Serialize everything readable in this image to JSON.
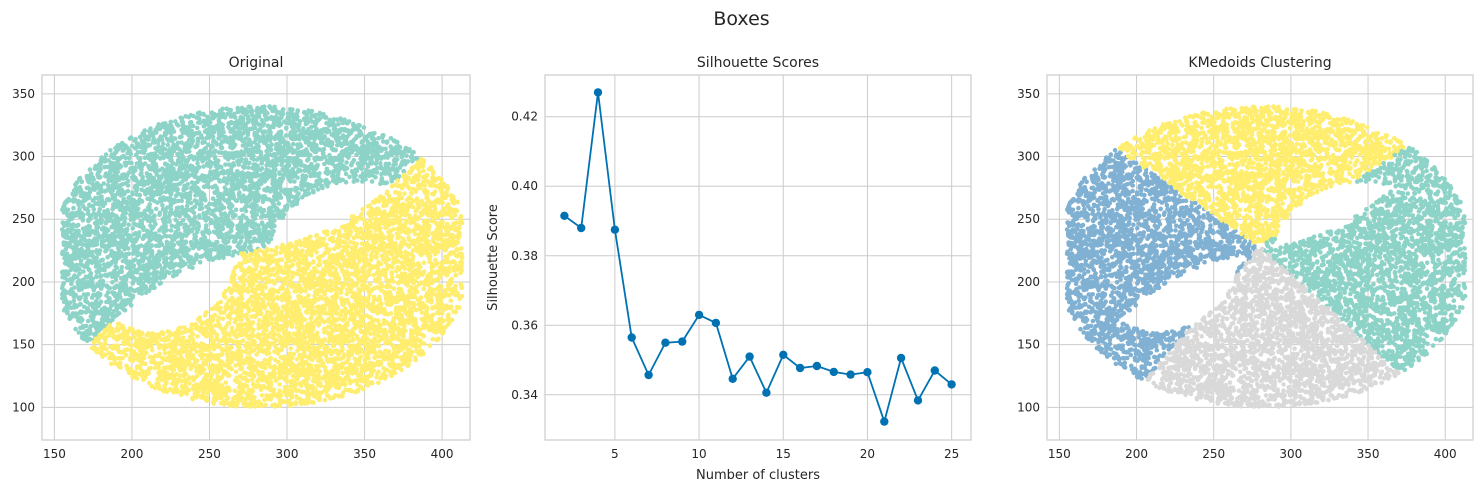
{
  "suptitle": "Boxes",
  "colors": {
    "teal": "#8dd3c7",
    "yellow": "#ffed6f",
    "blue": "#80b1d3",
    "gray": "#d9d9d9",
    "line": "#0072b2",
    "grid": "#cccccc",
    "spine": "#cccccc"
  },
  "chart_data": [
    {
      "type": "scatter",
      "title": "Original",
      "xlabel": "",
      "ylabel": "",
      "xlim": [
        142,
        418
      ],
      "ylim": [
        74,
        365
      ],
      "xticks": [
        150,
        200,
        250,
        300,
        350,
        400
      ],
      "yticks": [
        100,
        150,
        200,
        250,
        300,
        350
      ],
      "grid": true,
      "series": [
        {
          "color": "teal",
          "point_count": 4500,
          "region": "upper-left band of the ring: x 160-410, y 160-350"
        },
        {
          "color": "yellow",
          "point_count": 4500,
          "region": "lower-right band of the ring: x 155-405, y 90-270"
        }
      ]
    },
    {
      "type": "line",
      "title": "Silhouette Scores",
      "xlabel": "Number of clusters",
      "ylabel": "Silhouette Score",
      "xlim": [
        0.85,
        26.15
      ],
      "ylim": [
        0.327,
        0.432
      ],
      "xticks": [
        5,
        10,
        15,
        20,
        25
      ],
      "yticks": [
        0.34,
        0.36,
        0.38,
        0.4,
        0.42
      ],
      "ytick_labels": [
        "0.34",
        "0.36",
        "0.38",
        "0.40",
        "0.42"
      ],
      "grid": true,
      "x": [
        2,
        3,
        4,
        5,
        6,
        7,
        8,
        9,
        10,
        11,
        12,
        13,
        14,
        15,
        16,
        17,
        18,
        19,
        20,
        21,
        22,
        23,
        24,
        25
      ],
      "values": [
        0.3915,
        0.388,
        0.427,
        0.3875,
        0.3565,
        0.3457,
        0.355,
        0.3553,
        0.363,
        0.3607,
        0.3446,
        0.351,
        0.3406,
        0.3515,
        0.3477,
        0.3483,
        0.3466,
        0.3458,
        0.3465,
        0.3323,
        0.3506,
        0.3384,
        0.347,
        0.343
      ]
    },
    {
      "type": "scatter",
      "title": "KMedoids Clustering",
      "xlabel": "",
      "ylabel": "",
      "xlim": [
        142,
        418
      ],
      "ylim": [
        74,
        365
      ],
      "xticks": [
        150,
        200,
        250,
        300,
        350,
        400
      ],
      "yticks": [
        100,
        150,
        200,
        250,
        300,
        350
      ],
      "grid": true,
      "series": [
        {
          "color": "blue",
          "point_count": 2400,
          "region": "left sector"
        },
        {
          "color": "yellow",
          "point_count": 2200,
          "region": "top sector"
        },
        {
          "color": "teal",
          "point_count": 2200,
          "region": "right sector"
        },
        {
          "color": "gray",
          "point_count": 2200,
          "region": "bottom sector"
        }
      ]
    }
  ]
}
